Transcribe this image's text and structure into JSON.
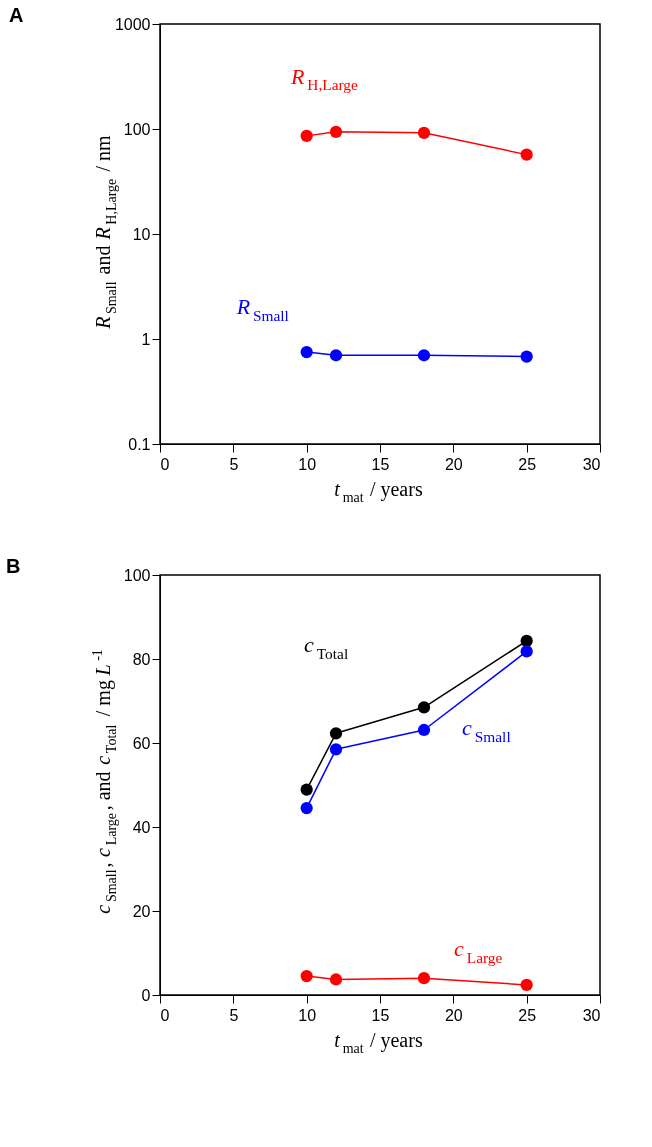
{
  "chart_data": [
    {
      "type": "line",
      "title": "A",
      "xlabel": "t$_{mat}$ / years",
      "ylabel": "R$_{Small}$ and R$_{H,Large}$ / nm",
      "log": "y",
      "marker": "circle",
      "grid": false,
      "x": [
        10,
        12,
        18,
        25
      ],
      "xlim": [
        0,
        30
      ],
      "xticks": [
        0,
        5,
        10,
        15,
        20,
        25,
        30
      ],
      "ylim": [
        0.1,
        1000
      ],
      "yticks": [
        0.1,
        1,
        10,
        100,
        1000
      ],
      "series": [
        {
          "name": "R$_{H,Large}$",
          "color": "#ff0000",
          "values": [
            86,
            94,
            92,
            57
          ]
        },
        {
          "name": "R$_{Small}$",
          "color": "#0000ff",
          "values": [
            0.75,
            0.7,
            0.7,
            0.68
          ]
        }
      ]
    },
    {
      "type": "line",
      "title": "B",
      "xlabel": "t$_{mat}$ / years",
      "ylabel": "c$_{Small}$, c$_{Large}$, and c$_{Total}$ / mg L$^{-1}$",
      "marker": "circle",
      "grid": false,
      "x": [
        10,
        12,
        18,
        25
      ],
      "xlim": [
        0,
        30
      ],
      "xticks": [
        0,
        5,
        10,
        15,
        20,
        25,
        30
      ],
      "ylim": [
        0,
        100
      ],
      "yticks": [
        0,
        20,
        40,
        60,
        80,
        100
      ],
      "series": [
        {
          "name": "c$_{Total}$",
          "color": "#000000",
          "values": [
            48.9,
            62.3,
            68.5,
            84.3
          ]
        },
        {
          "name": "c$_{Small}$",
          "color": "#0000ff",
          "values": [
            44.5,
            58.5,
            63.1,
            81.8
          ]
        },
        {
          "name": "c$_{Large}$",
          "color": "#ff0000",
          "values": [
            4.5,
            3.7,
            4.0,
            2.4
          ]
        }
      ]
    }
  ]
}
